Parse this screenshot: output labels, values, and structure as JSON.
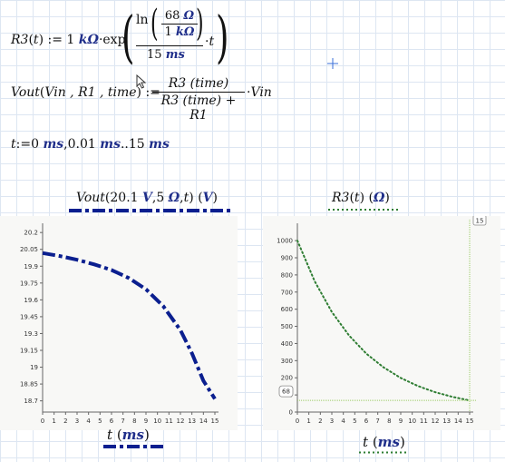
{
  "worksheet": {
    "eq1": {
      "lhs": "R3",
      "arg": "t",
      "assign": ":=",
      "coef": "1",
      "coef_unit": "kΩ",
      "dot": "·",
      "func": "exp",
      "ln": "ln",
      "inner_num": "68",
      "inner_num_unit": "Ω",
      "inner_den": "1",
      "inner_den_unit": "kΩ",
      "outer_den": "15",
      "outer_den_unit": "ms",
      "times_t": "t"
    },
    "eq2": {
      "lhs": "Vout",
      "args": "Vin , R1 , time",
      "assign": ":=",
      "num": "R3 (time)",
      "den": "R3 (time) + R1",
      "tail": "Vin"
    },
    "eq3": {
      "var": "t",
      "assign": ":=",
      "v0": "0",
      "v1": "0.01",
      "v2": "15",
      "unit": "ms",
      "sep1": ",",
      "sep2": ".."
    }
  },
  "plot_left": {
    "y_expr": "Vout",
    "y_args_a": "20.1",
    "y_args_a_unit": "V",
    "y_args_b": "5",
    "y_args_b_unit": "Ω",
    "y_args_c": "t",
    "y_unit": "V",
    "x_expr": "t",
    "x_unit": "ms",
    "trace_color": "#0b1f8f"
  },
  "plot_right": {
    "y_expr": "R3",
    "y_arg": "t",
    "y_unit": "Ω",
    "x_expr": "t",
    "x_unit": "ms",
    "marker_x_label": "15",
    "marker_y_label": "68",
    "trace_color": "#2e7d32"
  },
  "chart_data": [
    {
      "type": "line",
      "x": [
        0,
        1.5,
        3,
        4.5,
        6,
        7.5,
        9,
        10.5,
        12,
        13,
        14,
        15
      ],
      "values": [
        20.017,
        19.99,
        19.957,
        19.916,
        19.866,
        19.795,
        19.694,
        19.545,
        19.33,
        19.124,
        18.88,
        18.718
      ],
      "xlim": [
        0,
        15
      ],
      "ylim": [
        18.6,
        20.25
      ],
      "x_ticks": [
        "0",
        "1",
        "2",
        "3",
        "4",
        "5",
        "6",
        "7",
        "8",
        "9",
        "10",
        "11",
        "12",
        "13",
        "14",
        "15"
      ],
      "y_ticks": [
        "20.2",
        "20.05",
        "19.9",
        "19.75",
        "19.6",
        "19.45",
        "19.3",
        "19.15",
        "19",
        "18.85",
        "18.7"
      ],
      "line_style": "dash-dot",
      "grid": false
    },
    {
      "type": "line",
      "x": [
        0,
        1.5,
        3,
        4.5,
        6,
        7.5,
        9,
        10.5,
        12,
        13.5,
        15
      ],
      "values": [
        1000,
        764,
        584,
        447,
        341,
        261,
        199,
        152,
        116,
        89,
        68
      ],
      "xlim": [
        0,
        15
      ],
      "ylim": [
        0,
        1080
      ],
      "x_ticks": [
        "0",
        "1",
        "2",
        "3",
        "4",
        "5",
        "6",
        "7",
        "8",
        "9",
        "10",
        "11",
        "12",
        "13",
        "14",
        "15"
      ],
      "y_ticks": [
        "1000",
        "900",
        "800",
        "700",
        "600",
        "500",
        "400",
        "300",
        "200",
        "100",
        "0"
      ],
      "line_style": "dotted",
      "grid": false
    }
  ]
}
